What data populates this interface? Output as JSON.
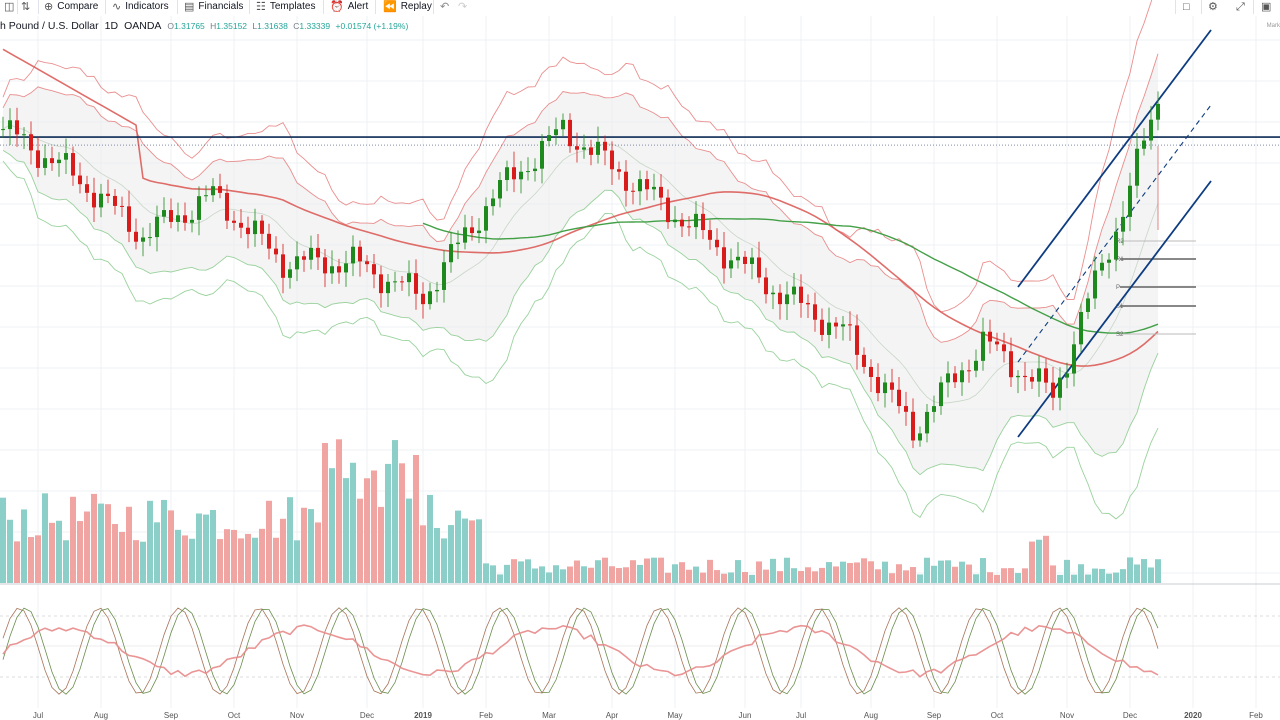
{
  "toolbar": {
    "compare": "Compare",
    "indicators": "Indicators",
    "financials": "Financials",
    "templates": "Templates",
    "alert": "Alert",
    "replay": "Replay"
  },
  "symbol": {
    "name": "h Pound / U.S. Dollar",
    "interval": "1D",
    "exchange": "OANDA",
    "open": "1.31765",
    "high": "1.35152",
    "low": "1.31638",
    "close": "1.33339",
    "change": "+0.01574 (+1.19%)"
  },
  "mark_badge": "Mark",
  "colors": {
    "up": "#26a69a",
    "down": "#ef5350",
    "candle_up": "#1e8a1e",
    "candle_down": "#d81b1b",
    "bands_upper": "#e57373",
    "bands_lower": "#81c784",
    "ma200": "#d9534f",
    "ma_green": "#43a047",
    "channel": "#0d3c80"
  },
  "pivot_labels": [
    "R2",
    "R1",
    "P",
    "S1",
    "S2"
  ],
  "chart_data": {
    "type": "candlestick",
    "title": "",
    "x_ticks": [
      "Jul",
      "Aug",
      "Sep",
      "Oct",
      "Nov",
      "Dec",
      "2019",
      "Feb",
      "Mar",
      "Apr",
      "May",
      "Jun",
      "Jul",
      "Aug",
      "Sep",
      "Oct",
      "Nov",
      "Dec",
      "2020",
      "Feb"
    ],
    "bold_ticks": [
      "2019",
      "2020"
    ],
    "anchor_x": [
      0,
      10,
      20,
      30,
      40,
      50,
      60,
      70,
      80,
      90,
      100,
      110,
      120,
      130,
      140,
      150,
      160,
      165
    ],
    "anchor_close": [
      1.322,
      1.305,
      1.282,
      1.297,
      1.272,
      1.272,
      1.259,
      1.297,
      1.322,
      1.302,
      1.282,
      1.262,
      1.246,
      1.209,
      1.242,
      1.222,
      1.292,
      1.333
    ],
    "resistance": 1.319,
    "ylim": [
      1.16,
      1.36
    ],
    "overlays": [
      "Bollinger Bands",
      "Moving Average (red)",
      "Moving Average (green)",
      "Ascending channel",
      "Pivot points"
    ],
    "volume_panel": true,
    "oscillator_panel": "Stochastic RSI"
  }
}
